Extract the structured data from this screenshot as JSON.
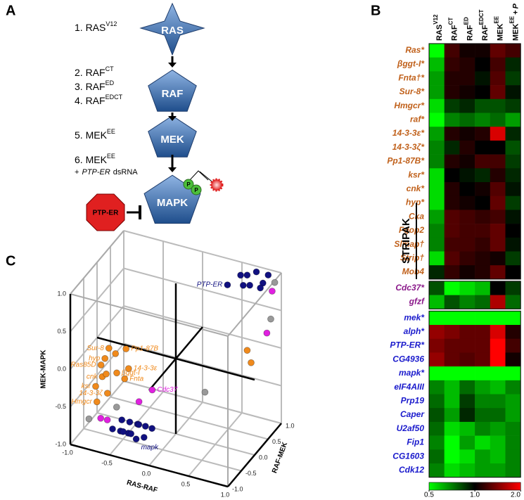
{
  "panel_a": {
    "label": "A",
    "steps": [
      {
        "text": "1. RAS",
        "sup": "V12"
      },
      {
        "text": "2. RAF",
        "sup": "CT"
      },
      {
        "text": "3. RAF",
        "sup": "ED"
      },
      {
        "text": "4. RAF",
        "sup": "EDCT"
      },
      {
        "text": "5. MEK",
        "sup": "EE"
      },
      {
        "text": "6. MEK",
        "sup": "EE"
      }
    ],
    "note": {
      "prefix": "+",
      "gene": "PTP-ER",
      "suffix": "dsRNA"
    },
    "nodes": [
      "RAS",
      "RAF",
      "MEK",
      "MAPK"
    ],
    "inhibitor": "PTP-ER",
    "phospho": "P"
  },
  "panel_b": {
    "label": "B",
    "type": "heatmap",
    "columns": [
      {
        "base": "RAS",
        "sup": "V12"
      },
      {
        "base": "RAF",
        "sup": "CT"
      },
      {
        "base": "RAF",
        "sup": "ED"
      },
      {
        "base": "RAF",
        "sup": "EDCT"
      },
      {
        "base": "MEK",
        "sup": "EE"
      },
      {
        "base": "MEK",
        "sup": "EE",
        "suffix": "+",
        "gene": "P"
      }
    ],
    "groups": [
      {
        "color": "#c0601a",
        "rows": [
          "Ras*",
          "βggt-I*",
          "Fnta†*",
          "Sur-8*",
          "Hmgcr*",
          "raf*",
          "14-3-3ε*",
          "14-3-3ζ*",
          "Pp1-87B*",
          "ksr*",
          "cnk*",
          "hyp*",
          "Cka",
          "Fgop2",
          "Slmap†",
          "Strip†",
          "Mob4"
        ],
        "values": [
          [
            0.5,
            1.2,
            1.05,
            1.05,
            1.3,
            1.2
          ],
          [
            0.6,
            1.15,
            1.1,
            1.0,
            1.2,
            0.9
          ],
          [
            0.65,
            1.1,
            1.1,
            0.95,
            1.25,
            0.85
          ],
          [
            0.65,
            1.1,
            1.05,
            1.0,
            1.3,
            0.95
          ],
          [
            0.55,
            0.85,
            0.9,
            0.8,
            0.8,
            0.85
          ],
          [
            0.5,
            0.7,
            0.75,
            0.7,
            0.75,
            0.65
          ],
          [
            0.65,
            1.1,
            1.05,
            1.1,
            1.8,
            0.9
          ],
          [
            0.7,
            0.9,
            1.1,
            1.0,
            1.0,
            0.8
          ],
          [
            0.7,
            1.1,
            1.05,
            1.2,
            1.2,
            0.85
          ],
          [
            0.55,
            1.0,
            0.95,
            0.9,
            1.1,
            0.9
          ],
          [
            0.55,
            1.1,
            1.0,
            1.05,
            1.25,
            0.95
          ],
          [
            0.55,
            1.1,
            1.05,
            1.0,
            1.3,
            0.85
          ],
          [
            0.65,
            1.25,
            1.2,
            1.15,
            1.2,
            0.95
          ],
          [
            0.7,
            1.25,
            1.2,
            1.2,
            1.3,
            1.0
          ],
          [
            0.7,
            1.2,
            1.2,
            1.15,
            1.3,
            0.95
          ],
          [
            0.55,
            1.25,
            1.15,
            1.1,
            1.05,
            0.85
          ],
          [
            0.9,
            1.15,
            1.05,
            1.1,
            1.3,
            1.0
          ]
        ]
      },
      {
        "color": "#8b1a8b",
        "rows": [
          "Cdc37*",
          "gfzf"
        ],
        "values": [
          [
            0.8,
            0.5,
            0.55,
            0.6,
            1.0,
            0.85
          ],
          [
            0.6,
            0.8,
            0.7,
            0.75,
            1.6,
            0.75
          ]
        ]
      },
      {
        "color": "#1a1acc",
        "rows": [
          "mek*",
          "alph*",
          "PTP-ER*",
          "CG4936",
          "mapk*",
          "eIF4AIII",
          "Prp19",
          "Caper",
          "U2af50",
          "Fip1",
          "CG1603",
          "Cdk12"
        ],
        "values": [
          [
            0.5,
            0.5,
            0.5,
            0.5,
            0.5,
            0.5
          ],
          [
            1.5,
            1.4,
            1.3,
            1.3,
            1.8,
            1.1
          ],
          [
            1.4,
            1.3,
            1.3,
            1.3,
            2.0,
            1.2
          ],
          [
            1.5,
            1.3,
            1.25,
            1.3,
            2.0,
            1.05
          ],
          [
            0.5,
            0.5,
            0.5,
            0.5,
            0.5,
            0.5
          ],
          [
            0.7,
            0.6,
            0.75,
            0.65,
            0.6,
            0.7
          ],
          [
            0.75,
            0.6,
            0.85,
            0.7,
            0.7,
            0.65
          ],
          [
            0.8,
            0.65,
            0.9,
            0.75,
            0.75,
            0.65
          ],
          [
            0.75,
            0.55,
            0.6,
            0.7,
            0.65,
            0.7
          ],
          [
            0.7,
            0.5,
            0.65,
            0.55,
            0.6,
            0.7
          ],
          [
            0.75,
            0.5,
            0.55,
            0.65,
            0.6,
            0.7
          ],
          [
            0.7,
            0.55,
            0.6,
            0.65,
            0.65,
            0.7
          ]
        ]
      }
    ],
    "bracket": "STRIPAK",
    "clim": [
      0.5,
      2.0
    ],
    "log_scale": true,
    "cticks": [
      0.5,
      {
        "value": 1,
        "label": "1.0"
      },
      {
        "value": 2,
        "label": "2.0"
      }
    ]
  },
  "panel_c": {
    "label": "C",
    "type": "scatter3d",
    "xlabel": "RAS-RAF",
    "ylabel": "RAF-MEK",
    "zlabel": "MEK-MAPK",
    "xlim": [
      -1,
      1
    ],
    "ylim": [
      -1,
      1
    ],
    "zlim": [
      -1,
      1
    ],
    "xticks": [
      {
        "value": -1,
        "label": "-1.0"
      },
      -0.5,
      {
        "value": 0,
        "label": "0.0"
      },
      0.5,
      {
        "value": 1,
        "label": "1.0"
      }
    ],
    "yticks": [
      {
        "value": -1,
        "label": "-1.0"
      },
      -0.5,
      {
        "value": 0,
        "label": "0.0"
      },
      0.5,
      {
        "value": 1,
        "label": "1.0"
      }
    ],
    "zticks": [
      {
        "value": -1,
        "label": "-1.0"
      },
      -0.5,
      {
        "value": 0,
        "label": "0.0"
      },
      0.5,
      {
        "value": 1,
        "label": "1.0"
      }
    ],
    "points": [
      {
        "label": "Sur-8",
        "color": "#f08a1c",
        "x": -0.85,
        "y": 0,
        "z": -0.1
      },
      {
        "label": "Pp1-87B",
        "color": "#f08a1c",
        "x": -0.7,
        "y": 0.2,
        "z": -0.15
      },
      {
        "label": "hyp",
        "color": "#f08a1c",
        "x": -0.9,
        "y": 0,
        "z": -0.25
      },
      {
        "label": "Ras85D",
        "color": "#f08a1c",
        "x": -0.95,
        "y": 0,
        "z": -0.35
      },
      {
        "label": "cnk",
        "color": "#f08a1c",
        "x": -0.9,
        "y": -0.1,
        "z": -0.45
      },
      {
        "label": "ksr",
        "color": "#f08a1c",
        "x": -0.95,
        "y": -0.2,
        "z": -0.55
      },
      {
        "label": "Hmgcr",
        "color": "#f08a1c",
        "x": -0.9,
        "y": -0.3,
        "z": -0.7
      },
      {
        "label": "βggt-I",
        "color": "#f08a1c",
        "x": -0.75,
        "y": 0,
        "z": -0.4
      },
      {
        "label": "Fnta",
        "color": "#f08a1c",
        "x": -0.65,
        "y": 0,
        "z": -0.45
      },
      {
        "label": "14-3-3ε",
        "color": "#f08a1c",
        "x": -0.6,
        "y": 0,
        "z": -0.3
      },
      {
        "label": "14-3-3ζ",
        "color": "#f08a1c",
        "x": -0.8,
        "y": -0.2,
        "z": -0.6
      },
      {
        "color": "#f08a1c",
        "x": -0.8,
        "y": 0.1,
        "z": -0.2
      },
      {
        "color": "#f08a1c",
        "x": -0.85,
        "y": -0.1,
        "z": -0.4
      },
      {
        "color": "#f08a1c",
        "x": 0.6,
        "y": 0.9,
        "z": -0.1
      },
      {
        "color": "#f08a1c",
        "x": 0.65,
        "y": 0.9,
        "z": -0.25
      },
      {
        "label": "PTP-ER",
        "color": "#101080",
        "x": 0.35,
        "y": 0.9,
        "z": 0.7
      },
      {
        "color": "#101080",
        "x": 0.6,
        "y": 0.9,
        "z": 0.9
      },
      {
        "color": "#101080",
        "x": 0.7,
        "y": 0.95,
        "z": 0.95
      },
      {
        "color": "#101080",
        "x": 0.8,
        "y": 0.9,
        "z": 0.85
      },
      {
        "color": "#101080",
        "x": 0.65,
        "y": 0.85,
        "z": 0.8
      },
      {
        "color": "#101080",
        "x": 0.75,
        "y": 0.95,
        "z": 0.75
      },
      {
        "color": "#101080",
        "x": 0.5,
        "y": 0.95,
        "z": 0.85
      },
      {
        "color": "#101080",
        "x": 0.85,
        "y": 0.95,
        "z": 0.95
      },
      {
        "color": "#101080",
        "x": 0.55,
        "y": 0.9,
        "z": 0.75
      },
      {
        "label": "mapk",
        "color": "#101080",
        "x": -0.3,
        "y": -0.6,
        "z": -0.9
      },
      {
        "color": "#101080",
        "x": -0.6,
        "y": -0.6,
        "z": -0.85
      },
      {
        "color": "#101080",
        "x": -0.5,
        "y": -0.6,
        "z": -0.85
      },
      {
        "color": "#101080",
        "x": -0.4,
        "y": -0.6,
        "z": -0.85
      },
      {
        "color": "#101080",
        "x": -0.2,
        "y": -0.6,
        "z": -0.85
      },
      {
        "color": "#101080",
        "x": -0.55,
        "y": -0.4,
        "z": -0.8
      },
      {
        "color": "#101080",
        "x": -0.45,
        "y": -0.4,
        "z": -0.8
      },
      {
        "color": "#101080",
        "x": -0.35,
        "y": -0.4,
        "z": -0.8
      },
      {
        "color": "#101080",
        "x": -0.25,
        "y": -0.4,
        "z": -0.8
      },
      {
        "color": "#101080",
        "x": -0.5,
        "y": -0.5,
        "z": -0.9
      },
      {
        "color": "#101080",
        "x": -0.4,
        "y": -0.5,
        "z": -0.9
      },
      {
        "color": "#101080",
        "x": -0.3,
        "y": -0.5,
        "z": -0.75
      },
      {
        "color": "#101080",
        "x": -0.15,
        "y": -0.45,
        "z": -0.78
      },
      {
        "color": "#999999",
        "x": 0.95,
        "y": 0.9,
        "z": 0.9
      },
      {
        "color": "#999999",
        "x": 0.9,
        "y": 0.9,
        "z": 0.4
      },
      {
        "color": "#999999",
        "x": 0.2,
        "y": 0.5,
        "z": -0.6
      },
      {
        "color": "#999999",
        "x": -0.9,
        "y": -0.6,
        "z": -0.8
      },
      {
        "color": "#999999",
        "x": -0.65,
        "y": -0.3,
        "z": -0.7
      },
      {
        "color": "#e020e0",
        "x": 0.9,
        "y": 0.95,
        "z": 0.75
      },
      {
        "color": "#e020e0",
        "x": 0.85,
        "y": 0.9,
        "z": 0.2
      },
      {
        "label": "Cdc37",
        "color": "#e020e0",
        "x": -0.3,
        "y": 0,
        "z": -0.5
      },
      {
        "color": "#e020e0",
        "x": -0.4,
        "y": -0.2,
        "z": -0.6
      },
      {
        "color": "#e020e0",
        "x": -0.75,
        "y": -0.6,
        "z": -0.75
      },
      {
        "color": "#e020e0",
        "x": -0.7,
        "y": -0.5,
        "z": -0.8
      }
    ]
  }
}
